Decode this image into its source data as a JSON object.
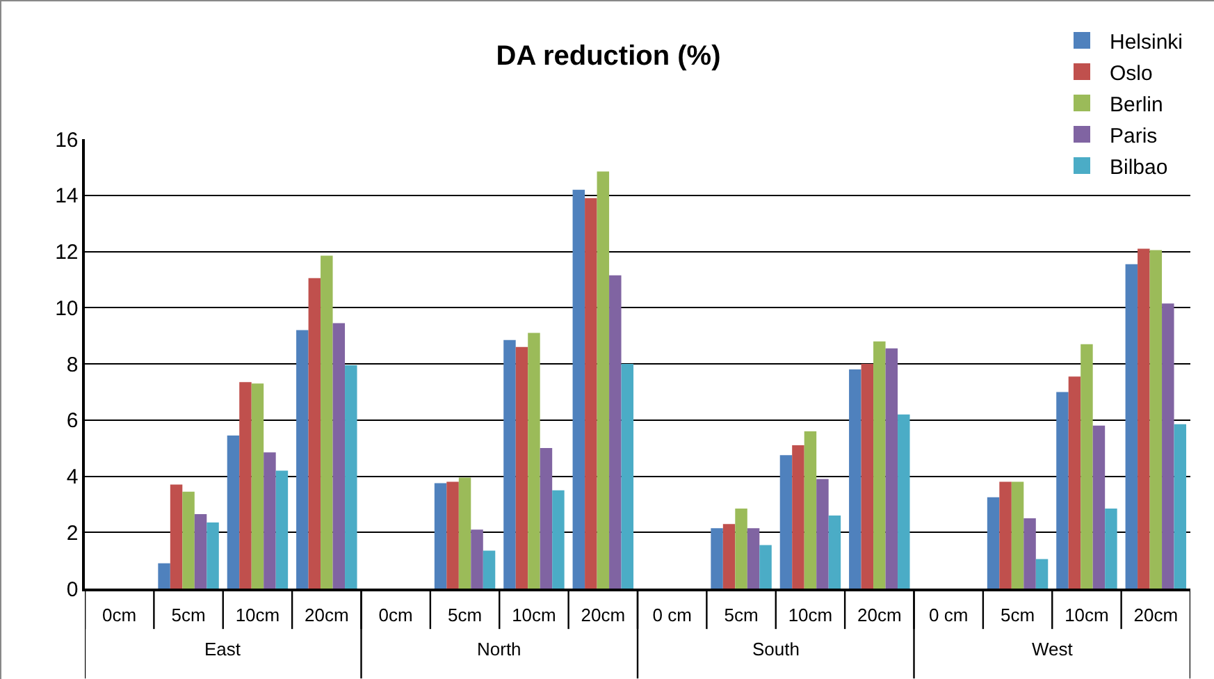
{
  "chart_data": {
    "type": "bar",
    "title": "DA reduction (%)",
    "categories": [
      "0cm",
      "5cm",
      "10cm",
      "20cm",
      "0cm",
      "5cm",
      "10cm",
      "20cm",
      "0 cm",
      "5cm",
      "10cm",
      "20cm",
      "0 cm",
      "5cm",
      "10cm",
      "20cm"
    ],
    "annotations": [
      "East",
      "North",
      "South",
      "West"
    ],
    "series": [
      {
        "name": "Helsinki",
        "color": "#4f81bd",
        "values": [
          null,
          0.9,
          5.45,
          9.2,
          null,
          3.75,
          8.85,
          14.2,
          null,
          2.15,
          4.75,
          7.8,
          null,
          3.25,
          7.0,
          11.55
        ]
      },
      {
        "name": "Oslo",
        "color": "#c0504d",
        "values": [
          null,
          3.7,
          7.35,
          11.05,
          null,
          3.8,
          8.6,
          13.9,
          null,
          2.3,
          5.1,
          8.0,
          null,
          3.8,
          7.55,
          12.1
        ]
      },
      {
        "name": "Berlin",
        "color": "#9bbb59",
        "values": [
          null,
          3.45,
          7.3,
          11.85,
          null,
          3.95,
          9.1,
          14.85,
          null,
          2.85,
          5.6,
          8.8,
          null,
          3.8,
          8.7,
          12.05
        ]
      },
      {
        "name": "Paris",
        "color": "#8064a2",
        "values": [
          null,
          2.65,
          4.85,
          9.45,
          null,
          2.1,
          5.0,
          11.15,
          null,
          2.15,
          3.9,
          8.55,
          null,
          2.5,
          5.8,
          10.15
        ]
      },
      {
        "name": "Bilbao",
        "color": "#4bacc6",
        "values": [
          null,
          2.35,
          4.2,
          7.95,
          null,
          1.35,
          3.5,
          8.0,
          null,
          1.55,
          2.6,
          6.2,
          null,
          1.05,
          2.85,
          5.85
        ]
      }
    ],
    "ylim": [
      0,
      16
    ],
    "yticks": [
      0,
      2,
      4,
      6,
      8,
      10,
      12,
      14,
      16
    ],
    "grid": "y",
    "legend": "top right"
  }
}
